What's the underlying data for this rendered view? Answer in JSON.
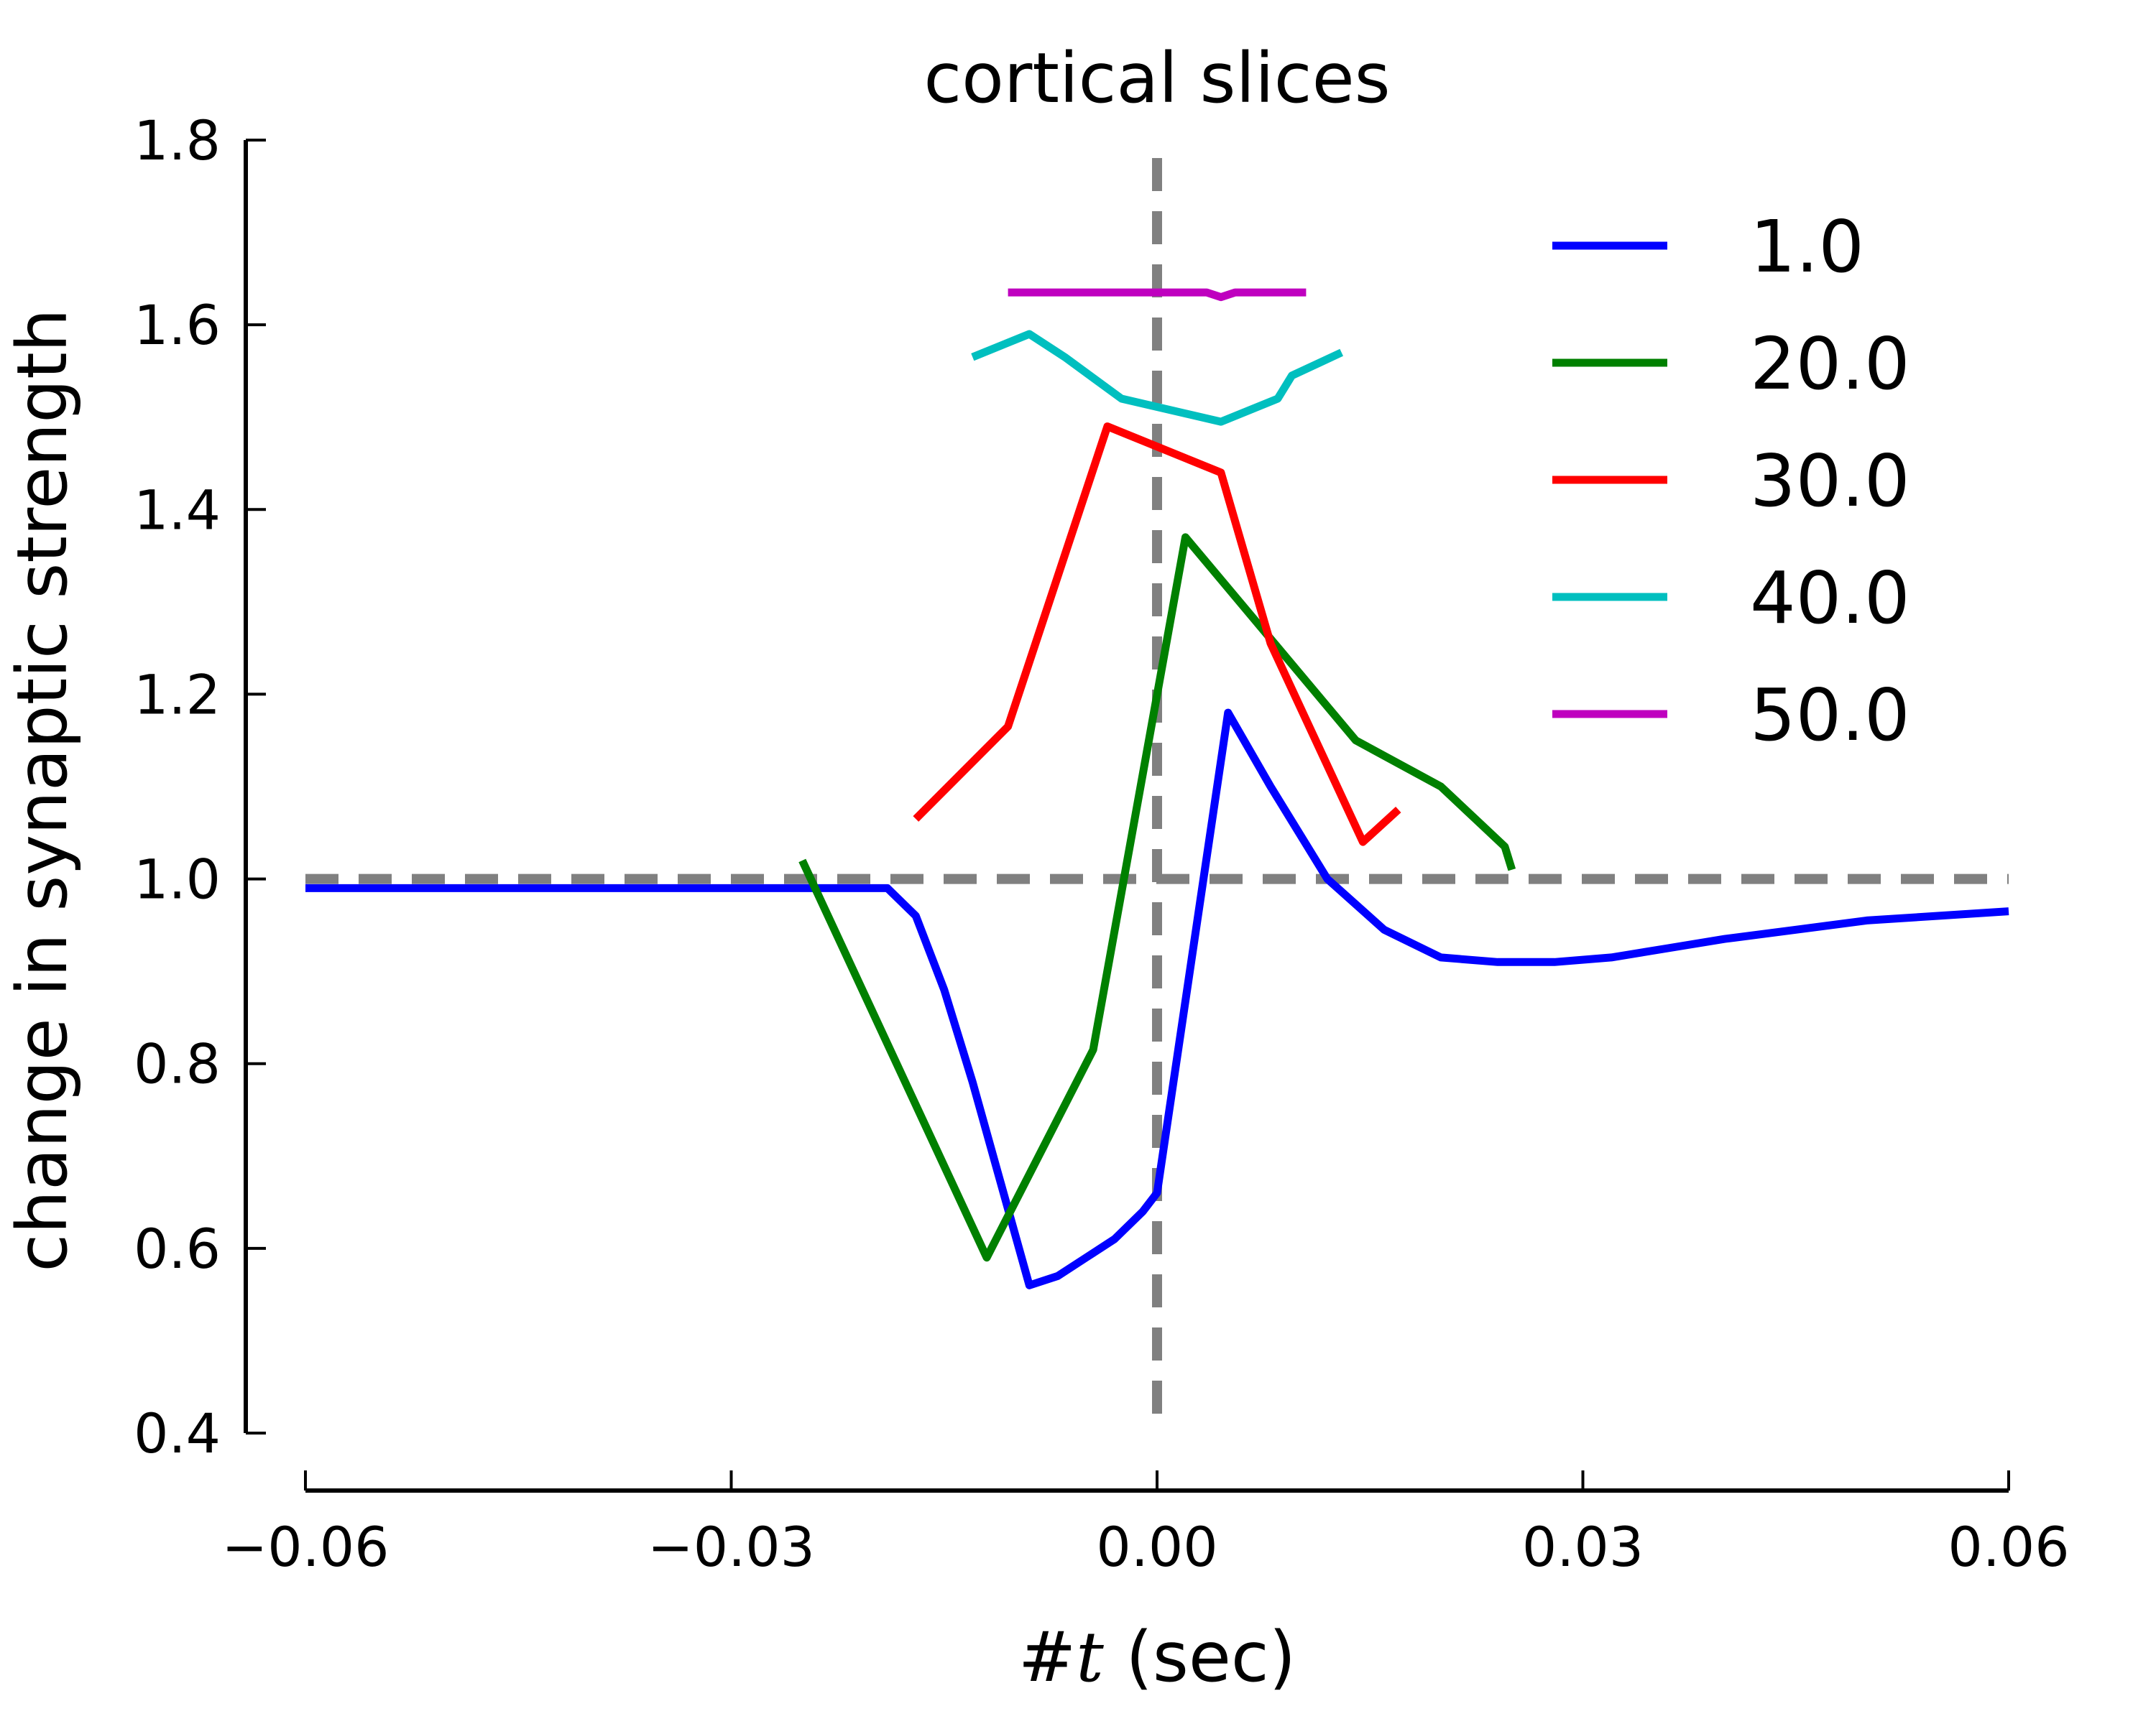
{
  "chart_data": {
    "type": "line",
    "title": "cortical slices",
    "xlabel": "#t (sec)",
    "ylabel": "change in synaptic strength",
    "xlim": [
      -0.06,
      0.06
    ],
    "ylim": [
      0.4,
      1.8
    ],
    "xticks": [
      -0.06,
      -0.03,
      0.0,
      0.03,
      0.06
    ],
    "xtick_labels": [
      "−0.06",
      "−0.03",
      "0.00",
      "0.03",
      "0.06"
    ],
    "yticks": [
      0.4,
      0.6,
      0.8,
      1.0,
      1.2,
      1.4,
      1.6,
      1.8
    ],
    "ytick_labels": [
      "0.4",
      "0.6",
      "0.8",
      "1.0",
      "1.2",
      "1.4",
      "1.6",
      "1.8"
    ],
    "grid": false,
    "legend_position": "top-right",
    "reference_lines": [
      {
        "orientation": "horizontal",
        "value": 1.0,
        "style": "dashed",
        "color": "#808080"
      },
      {
        "orientation": "vertical",
        "value": 0.0,
        "style": "dashed",
        "color": "#808080"
      }
    ],
    "series": [
      {
        "name": "1.0",
        "color": "#0000ff",
        "x": [
          -0.06,
          -0.05,
          -0.04,
          -0.03,
          -0.02,
          -0.019,
          -0.017,
          -0.015,
          -0.013,
          -0.011,
          -0.009,
          -0.007,
          -0.005,
          -0.003,
          -0.001,
          0.0,
          0.005,
          0.008,
          0.012,
          0.016,
          0.02,
          0.024,
          0.028,
          0.032,
          0.036,
          0.04,
          0.045,
          0.05,
          0.055,
          0.06
        ],
        "y": [
          0.99,
          0.99,
          0.99,
          0.99,
          0.99,
          0.99,
          0.96,
          0.88,
          0.78,
          0.67,
          0.56,
          0.57,
          0.59,
          0.61,
          0.64,
          0.66,
          1.18,
          1.1,
          1.0,
          0.945,
          0.915,
          0.91,
          0.91,
          0.915,
          0.925,
          0.935,
          0.945,
          0.955,
          0.96,
          0.965
        ]
      },
      {
        "name": "20.0",
        "color": "#008000",
        "x": [
          -0.025,
          -0.012,
          -0.0045,
          0.002,
          0.008,
          0.014,
          0.02,
          0.0245,
          0.025
        ],
        "y": [
          1.02,
          0.59,
          0.815,
          1.37,
          1.26,
          1.15,
          1.1,
          1.035,
          1.01
        ]
      },
      {
        "name": "30.0",
        "color": "#ff0000",
        "x": [
          -0.017,
          -0.0105,
          -0.0035,
          0.0045,
          0.008,
          0.0145,
          0.017
        ],
        "y": [
          1.065,
          1.165,
          1.49,
          1.44,
          1.255,
          1.04,
          1.075
        ]
      },
      {
        "name": "40.0",
        "color": "#00bfbf",
        "x": [
          -0.013,
          -0.009,
          -0.0065,
          -0.0025,
          0.0045,
          0.0085,
          0.0095,
          0.013
        ],
        "y": [
          1.565,
          1.59,
          1.565,
          1.52,
          1.495,
          1.52,
          1.545,
          1.57
        ]
      },
      {
        "name": "50.0",
        "color": "#bf00bf",
        "x": [
          -0.0105,
          0.0035,
          0.0045,
          0.0055,
          0.0105
        ],
        "y": [
          1.635,
          1.635,
          1.63,
          1.635,
          1.635
        ]
      }
    ]
  }
}
